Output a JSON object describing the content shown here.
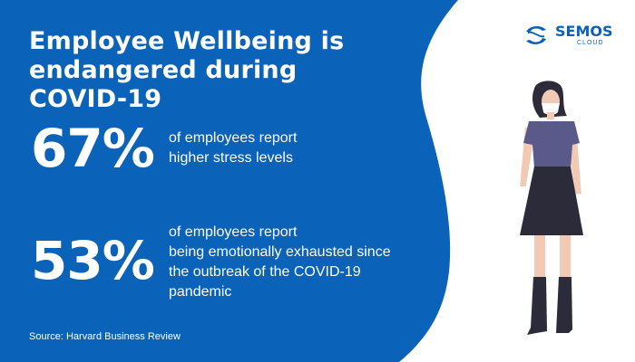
{
  "title": {
    "line1": "Employee Wellbeing is",
    "line2": "endangered during COVID-19"
  },
  "stats": [
    {
      "value": "67%",
      "lines": [
        "of employees report",
        "higher stress levels"
      ]
    },
    {
      "value": "53%",
      "lines": [
        "of employees report",
        "being emotionally exhausted since",
        "the outbreak of the COVID-19",
        "pandemic"
      ]
    }
  ],
  "source": "Source: Harvard Business Review",
  "logo": {
    "name": "SEMOS",
    "sub": "CLOUD"
  },
  "colors": {
    "background_blue": "#0a63b8",
    "white": "#ffffff",
    "shirt": "#5a5a8a",
    "skirt": "#2b2b3a"
  },
  "icons": [
    "semos-logo-icon",
    "woman-with-mask-illustration"
  ]
}
